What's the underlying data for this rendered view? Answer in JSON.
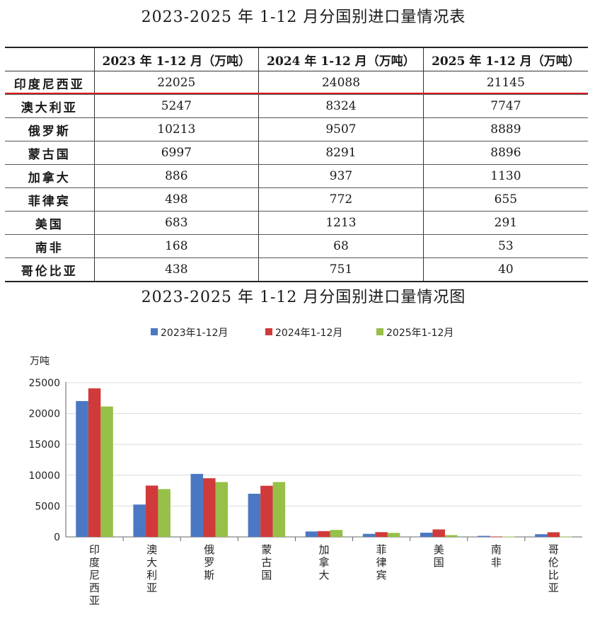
{
  "table": {
    "title": "2023-2025 年 1-12 月分国别进口量情况表",
    "headers": [
      "",
      "2023 年 1-12 月（万吨）",
      "2024 年 1-12 月（万吨）",
      "2025 年 1-12 月（万吨）"
    ],
    "rows": [
      {
        "country": "印度尼西亚",
        "v2023": "22025",
        "v2024": "24088",
        "v2025": "21145"
      },
      {
        "country": "澳大利亚",
        "v2023": "5247",
        "v2024": "8324",
        "v2025": "7747"
      },
      {
        "country": "俄罗斯",
        "v2023": "10213",
        "v2024": "9507",
        "v2025": "8889"
      },
      {
        "country": "蒙古国",
        "v2023": "6997",
        "v2024": "8291",
        "v2025": "8896"
      },
      {
        "country": "加拿大",
        "v2023": "886",
        "v2024": "937",
        "v2025": "1130"
      },
      {
        "country": "菲律宾",
        "v2023": "498",
        "v2024": "772",
        "v2025": "655"
      },
      {
        "country": "美国",
        "v2023": "683",
        "v2024": "1213",
        "v2025": "291"
      },
      {
        "country": "南非",
        "v2023": "168",
        "v2024": "68",
        "v2025": "53"
      },
      {
        "country": "哥伦比亚",
        "v2023": "438",
        "v2024": "751",
        "v2025": "40"
      }
    ],
    "highlight_color": "#d81e1e"
  },
  "chart_data": {
    "type": "bar",
    "title": "2023-2025 年 1-12 月分国别进口量情况图",
    "ylabel": "万吨",
    "xlabel": "",
    "categories": [
      "印度尼西亚",
      "澳大利亚",
      "俄罗斯",
      "蒙古国",
      "加拿大",
      "菲律宾",
      "美国",
      "南非",
      "哥伦比亚"
    ],
    "series": [
      {
        "name": "2023年1-12月",
        "color": "#4a78c2",
        "values": [
          22025,
          5247,
          10213,
          6997,
          886,
          498,
          683,
          168,
          438
        ]
      },
      {
        "name": "2024年1-12月",
        "color": "#d03a3a",
        "values": [
          24088,
          8324,
          9507,
          8291,
          937,
          772,
          1213,
          68,
          751
        ]
      },
      {
        "name": "2025年1-12月",
        "color": "#96c047",
        "values": [
          21145,
          7747,
          8889,
          8896,
          1130,
          655,
          291,
          53,
          40
        ]
      }
    ],
    "ylim": [
      0,
      25000
    ],
    "yticks": [
      0,
      5000,
      10000,
      15000,
      20000,
      25000
    ],
    "grid": true,
    "legend": "top-center"
  }
}
